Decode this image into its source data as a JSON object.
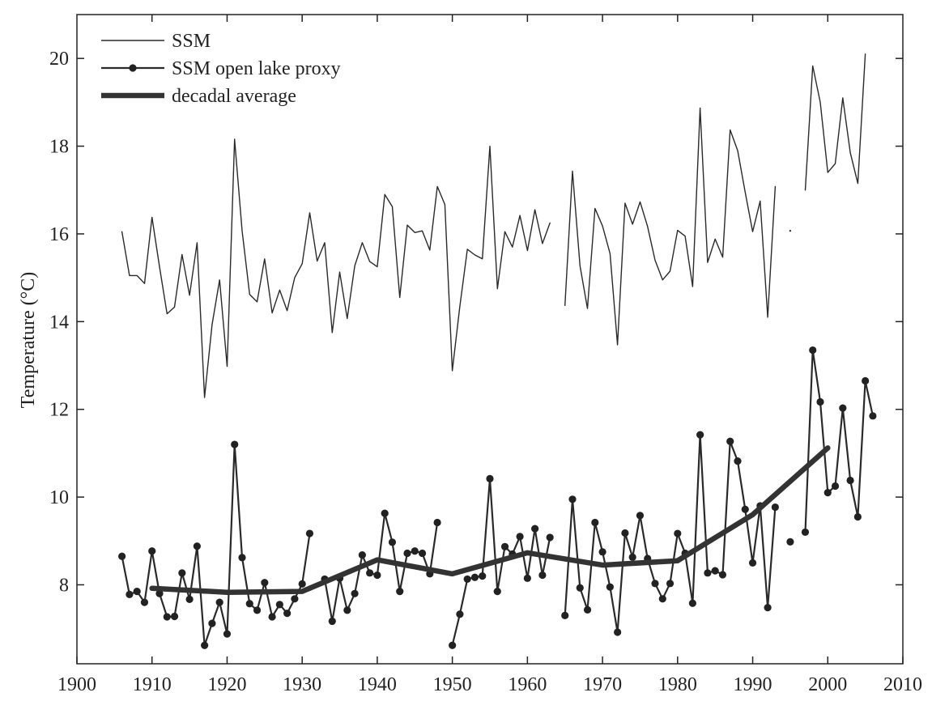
{
  "chart_data": {
    "type": "line",
    "ylabel": "Temperature",
    "ylabel_unit": "(°C)",
    "xlim": [
      1900,
      2010
    ],
    "ylim": [
      6.2,
      21
    ],
    "x_ticks": [
      "1900",
      "1910",
      "1920",
      "1930",
      "1940",
      "1950",
      "1960",
      "1970",
      "1980",
      "1990",
      "2000",
      "2010"
    ],
    "y_ticks": [
      "8",
      "10",
      "12",
      "14",
      "16",
      "18",
      "20"
    ],
    "grid": false,
    "legend_position": "top-left",
    "series": [
      {
        "name": "SSM",
        "style": "thin-line",
        "color": "#2a2a2a",
        "x": [
          1906,
          1907,
          1908,
          1909,
          1910,
          1911,
          1912,
          1913,
          1914,
          1915,
          1916,
          1917,
          1918,
          1919,
          1920,
          1921,
          1922,
          1923,
          1924,
          1925,
          1926,
          1927,
          1928,
          1929,
          1930,
          1931,
          1932,
          1933,
          1934,
          1935,
          1936,
          1937,
          1938,
          1939,
          1940,
          1941,
          1942,
          1943,
          1944,
          1945,
          1946,
          1947,
          1948,
          1949,
          1950,
          1951,
          1952,
          1953,
          1954,
          1955,
          1956,
          1957,
          1958,
          1959,
          1960,
          1961,
          1962,
          1963,
          1964,
          1965,
          1966,
          1967,
          1968,
          1969,
          1970,
          1971,
          1972,
          1973,
          1974,
          1975,
          1976,
          1977,
          1978,
          1979,
          1980,
          1981,
          1982,
          1983,
          1984,
          1985,
          1986,
          1987,
          1988,
          1989,
          1990,
          1991,
          1992,
          1993,
          1994,
          1995,
          1996,
          1997,
          1998,
          1999,
          2000,
          2001,
          2002,
          2003,
          2004,
          2005
        ],
        "y": [
          16.05,
          15.05,
          15.05,
          14.87,
          16.38,
          15.25,
          14.18,
          14.33,
          15.53,
          14.6,
          15.8,
          12.27,
          13.93,
          14.95,
          12.98,
          18.16,
          16.07,
          14.62,
          14.45,
          15.43,
          14.2,
          14.72,
          14.25,
          15.0,
          15.32,
          16.48,
          15.38,
          15.8,
          13.75,
          15.13,
          14.07,
          15.27,
          15.8,
          15.37,
          15.25,
          16.9,
          16.62,
          14.55,
          16.2,
          16.03,
          16.07,
          15.63,
          17.08,
          16.67,
          12.88,
          14.35,
          15.65,
          15.52,
          15.43,
          18.0,
          14.75,
          16.05,
          15.7,
          16.42,
          15.62,
          16.55,
          15.78,
          16.25,
          null,
          14.37,
          17.43,
          15.27,
          14.3,
          16.58,
          16.18,
          15.55,
          13.47,
          16.7,
          16.22,
          16.73,
          16.17,
          15.4,
          14.95,
          15.15,
          16.08,
          15.95,
          14.8,
          18.87,
          15.35,
          15.88,
          15.47,
          18.37,
          17.9,
          16.95,
          16.05,
          16.75,
          14.1,
          17.08,
          null,
          16.07,
          null,
          17.0,
          19.83,
          19.0,
          17.4,
          17.6,
          19.1,
          17.85,
          17.15,
          20.1
        ]
      },
      {
        "name": "SSM open lake proxy",
        "style": "line-with-dots",
        "color": "#2a2a2a",
        "x": [
          1906,
          1907,
          1908,
          1909,
          1910,
          1911,
          1912,
          1913,
          1914,
          1915,
          1916,
          1917,
          1918,
          1919,
          1920,
          1921,
          1922,
          1923,
          1924,
          1925,
          1926,
          1927,
          1928,
          1929,
          1930,
          1931,
          1932,
          1933,
          1934,
          1935,
          1936,
          1937,
          1938,
          1939,
          1940,
          1941,
          1942,
          1943,
          1944,
          1945,
          1946,
          1947,
          1948,
          1949,
          1950,
          1951,
          1952,
          1953,
          1954,
          1955,
          1956,
          1957,
          1958,
          1959,
          1960,
          1961,
          1962,
          1963,
          1964,
          1965,
          1966,
          1967,
          1968,
          1969,
          1970,
          1971,
          1972,
          1973,
          1974,
          1975,
          1976,
          1977,
          1978,
          1979,
          1980,
          1981,
          1982,
          1983,
          1984,
          1985,
          1986,
          1987,
          1988,
          1989,
          1990,
          1991,
          1992,
          1993,
          1994,
          1995,
          1996,
          1997,
          1998,
          1999,
          2000,
          2001,
          2002,
          2003,
          2004,
          2005,
          2006
        ],
        "y": [
          8.65,
          7.78,
          7.85,
          7.6,
          8.77,
          7.8,
          7.27,
          7.28,
          8.27,
          7.67,
          8.88,
          6.62,
          7.12,
          7.6,
          6.88,
          11.2,
          8.62,
          7.57,
          7.42,
          8.05,
          7.27,
          7.55,
          7.35,
          7.68,
          8.02,
          9.17,
          null,
          8.13,
          7.17,
          8.15,
          7.42,
          7.8,
          8.68,
          8.27,
          8.22,
          9.63,
          8.97,
          7.85,
          8.72,
          8.77,
          8.72,
          8.25,
          9.42,
          null,
          6.62,
          7.33,
          8.13,
          8.17,
          8.2,
          10.42,
          7.85,
          8.87,
          8.7,
          9.1,
          8.15,
          9.28,
          8.22,
          9.08,
          null,
          7.3,
          9.95,
          7.93,
          7.43,
          9.42,
          8.75,
          7.95,
          6.92,
          9.18,
          8.63,
          9.58,
          8.6,
          8.03,
          7.68,
          8.03,
          9.17,
          8.72,
          7.58,
          11.42,
          8.27,
          8.32,
          8.23,
          11.27,
          10.82,
          9.72,
          8.5,
          9.8,
          7.48,
          9.77,
          null,
          8.98,
          null,
          9.2,
          13.35,
          12.17,
          10.1,
          10.25,
          12.03,
          10.38,
          9.55,
          12.65,
          11.85
        ]
      },
      {
        "name": "decadal average",
        "style": "thick-line",
        "color": "#333333",
        "x": [
          1910,
          1920,
          1930,
          1940,
          1950,
          1960,
          1970,
          1980,
          1990,
          2000
        ],
        "y": [
          7.92,
          7.83,
          7.85,
          8.57,
          8.25,
          8.73,
          8.45,
          8.55,
          9.6,
          11.12
        ]
      }
    ]
  }
}
